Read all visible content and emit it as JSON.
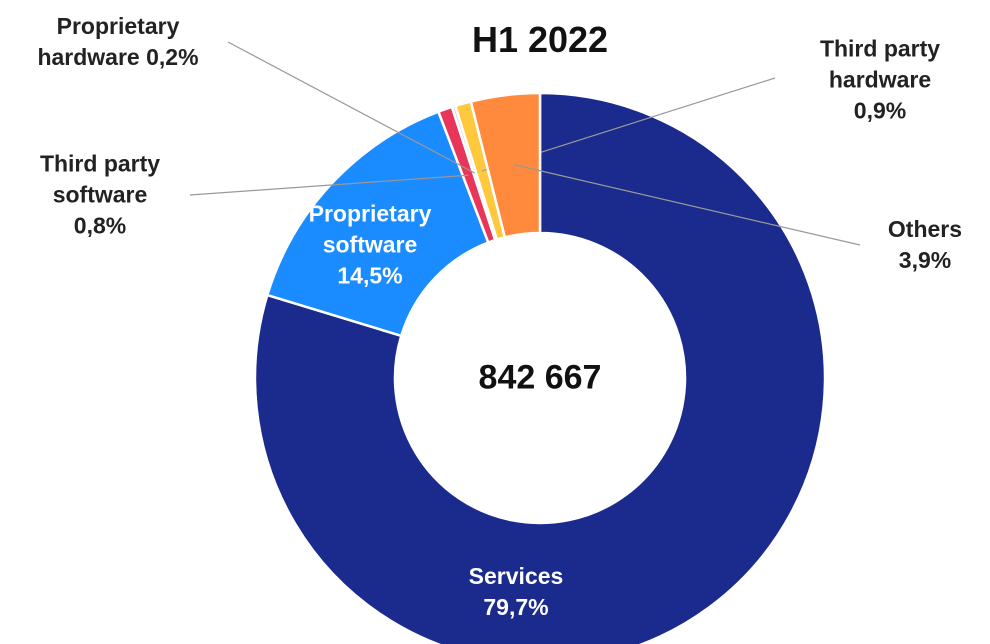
{
  "chart_data": {
    "type": "donut",
    "title": "H1 2022",
    "center_label": "842 667",
    "categories": [
      "Services",
      "Proprietary software",
      "Third party software",
      "Proprietary hardware",
      "Third party hardware",
      "Others"
    ],
    "values": [
      79.7,
      14.5,
      0.8,
      0.2,
      0.9,
      3.9
    ],
    "value_labels": [
      "79,7%",
      "14,5%",
      "0,8%",
      "0,2%",
      "0,9%",
      "3,9%"
    ],
    "colors": [
      "#1b2a8d",
      "#1a8cff",
      "#e8365a",
      "#d9d9d9",
      "#ffc83d",
      "#ff8a3d"
    ]
  }
}
